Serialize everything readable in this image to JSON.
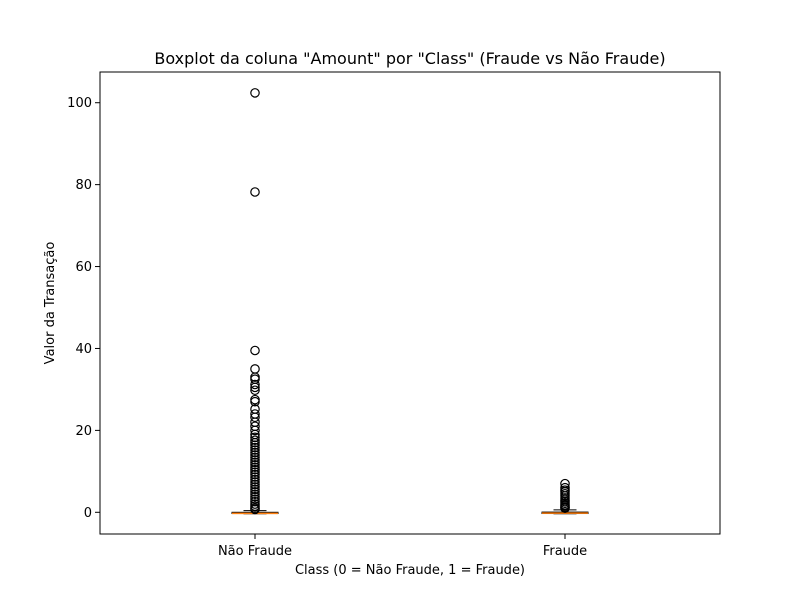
{
  "chart_data": {
    "type": "boxplot",
    "title": "Boxplot da coluna \"Amount\" por \"Class\" (Fraude vs Não Fraude)",
    "xlabel": "Class (0 = Não Fraude, 1 = Fraude)",
    "ylabel": "Valor da Transação",
    "categories": [
      "Não Fraude",
      "Fraude"
    ],
    "ylim": [
      -5.3,
      107.5
    ],
    "yticks": [
      0,
      20,
      40,
      60,
      80,
      100
    ],
    "grid": false,
    "colors": {
      "median": "#ff7f0e",
      "box": "#000000",
      "flier": "#000000"
    },
    "boxes": [
      {
        "name": "Não Fraude",
        "whislo": -0.35,
        "q1": -0.3,
        "med": -0.25,
        "q3": 0.0,
        "whishi": 0.4,
        "fliers": [
          102.4,
          78.2,
          39.5,
          35.0,
          33.0,
          32.5,
          31.2,
          30.5,
          29.8,
          27.5,
          27.0,
          25.2,
          24.0,
          23.2,
          22.0,
          21.0,
          20.0,
          19.0,
          18.3,
          17.6,
          17.0,
          16.4,
          15.8,
          15.2,
          14.6,
          14.0,
          13.4,
          12.8,
          12.2,
          11.6,
          11.0,
          10.4,
          9.8,
          9.2,
          8.6,
          8.0,
          7.4,
          6.8,
          6.2,
          5.6,
          5.0,
          4.4,
          3.8,
          3.2,
          2.6,
          2.0,
          1.5,
          1.0,
          0.7
        ]
      },
      {
        "name": "Fraude",
        "whislo": -0.35,
        "q1": -0.3,
        "med": -0.2,
        "q3": 0.05,
        "whishi": 0.6,
        "fliers": [
          7.0,
          6.0,
          5.4,
          5.0,
          4.5,
          4.0,
          3.5,
          3.0,
          2.6,
          2.2,
          1.8,
          1.5,
          1.2,
          1.0
        ]
      }
    ]
  }
}
